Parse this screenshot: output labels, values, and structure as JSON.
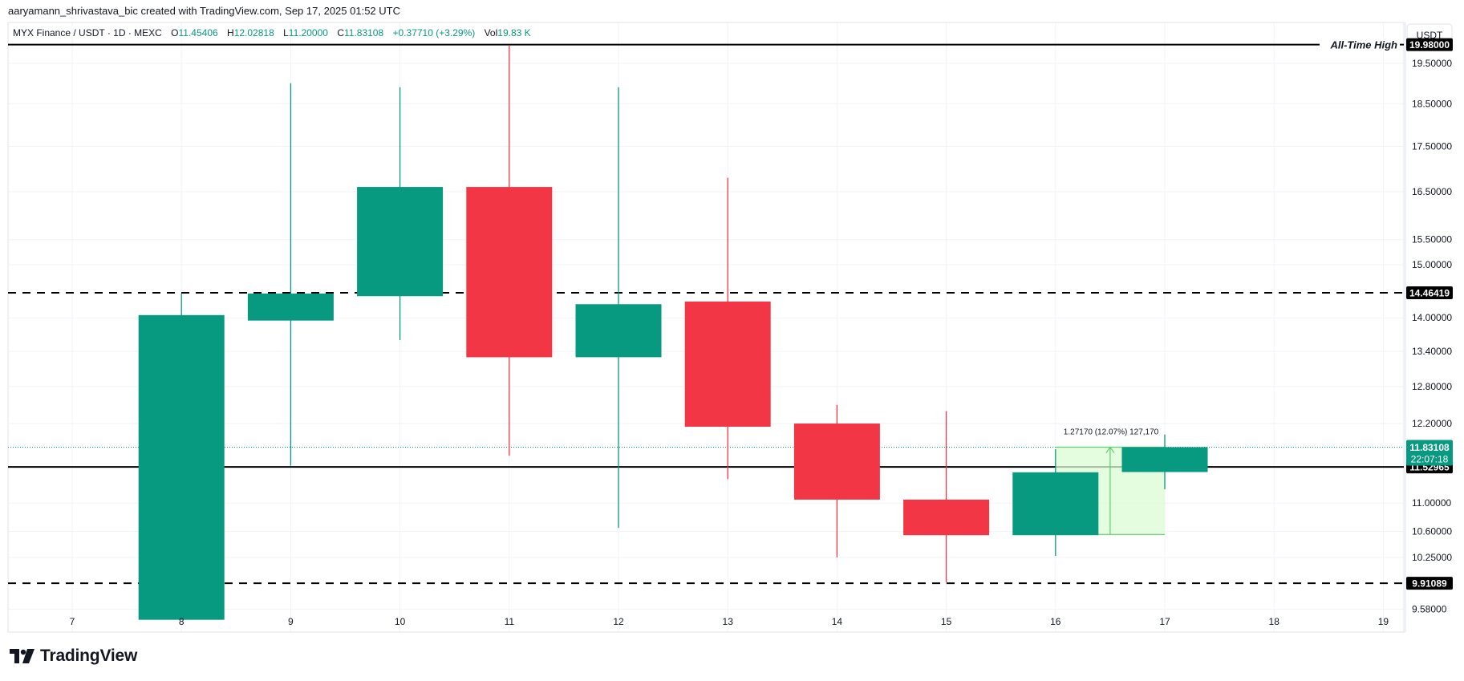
{
  "header": {
    "attribution": "aaryamann_shrivastava_bic created with TradingView.com, Sep 17, 2025 01:52 UTC"
  },
  "legend": {
    "symbol": "MYX Finance / USDT · 1D · MEXC",
    "open_label": "O",
    "open": "11.45406",
    "high_label": "H",
    "high": "12.02818",
    "low_label": "L",
    "low": "11.20000",
    "close_label": "C",
    "close": "11.83108",
    "change": "+0.37710 (+3.29%)",
    "vol_label": "Vol",
    "vol": "19.83 K"
  },
  "brand": {
    "name": "TradingView"
  },
  "colors": {
    "up": "#089981",
    "down": "#f23645",
    "grid": "#f0f3fa",
    "axis_text": "#131722",
    "projection_fill": "#dcfcd4",
    "projection_stroke": "#5ad16a"
  },
  "chart_data": {
    "type": "candlestick",
    "y_scale": "log",
    "y_axis_unit": "USDT",
    "x_tick_labels": [
      "7",
      "8",
      "9",
      "10",
      "11",
      "12",
      "13",
      "14",
      "15",
      "16",
      "17",
      "18",
      "19"
    ],
    "x_range": [
      7,
      19
    ],
    "y_tick_labels": [
      "19.50000",
      "18.50000",
      "17.50000",
      "16.50000",
      "15.50000",
      "15.00000",
      "14.00000",
      "13.40000",
      "12.80000",
      "12.20000",
      "11.00000",
      "10.60000",
      "10.25000",
      "9.58000"
    ],
    "y_range": [
      9.3,
      20.35
    ],
    "candles": [
      {
        "day": 8,
        "open": 9.45,
        "high": 14.45,
        "low": 9.45,
        "close": 14.05
      },
      {
        "day": 9,
        "open": 13.95,
        "high": 19.0,
        "low": 11.55,
        "close": 14.45
      },
      {
        "day": 10,
        "open": 14.4,
        "high": 18.9,
        "low": 13.6,
        "close": 16.6
      },
      {
        "day": 11,
        "open": 16.6,
        "high": 19.95,
        "low": 11.7,
        "close": 13.3
      },
      {
        "day": 12,
        "open": 13.3,
        "high": 18.9,
        "low": 10.65,
        "close": 14.25
      },
      {
        "day": 13,
        "open": 14.3,
        "high": 16.8,
        "low": 11.35,
        "close": 12.15
      },
      {
        "day": 14,
        "open": 12.2,
        "high": 12.5,
        "low": 10.25,
        "close": 11.05
      },
      {
        "day": 15,
        "open": 11.05,
        "high": 12.4,
        "low": 9.92,
        "close": 10.55
      },
      {
        "day": 16,
        "open": 10.55,
        "high": 11.8,
        "low": 10.27,
        "close": 11.45
      },
      {
        "day": 17,
        "open": 11.45406,
        "high": 12.02818,
        "low": 11.2,
        "close": 11.83108
      }
    ],
    "levels": [
      {
        "name": "all-time-high",
        "price": 19.98,
        "label": "19.98000",
        "style": "solid",
        "text": "All-Time High"
      },
      {
        "name": "resistance",
        "price": 14.46419,
        "label": "14.46419",
        "style": "dashed",
        "text": ""
      },
      {
        "name": "support-mid",
        "price": 11.52965,
        "label": "11.52965",
        "style": "solid",
        "text": ""
      },
      {
        "name": "support-low",
        "price": 9.91089,
        "label": "9.91089",
        "style": "dashed",
        "text": ""
      }
    ],
    "last_price": {
      "price": 11.83108,
      "label": "11.83108",
      "countdown": "22:07:18"
    },
    "projection": {
      "x_start": 16.0,
      "x_end": 17.0,
      "low": 10.56,
      "high": 11.83,
      "label": "1.27170 (12.07%) 127,170"
    }
  }
}
